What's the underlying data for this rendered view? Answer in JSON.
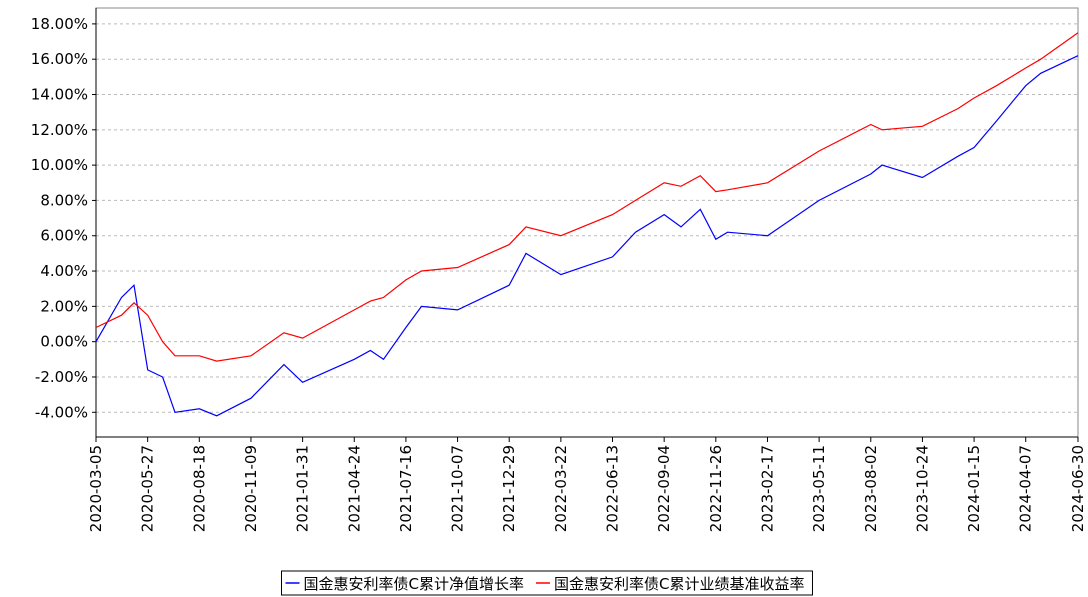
{
  "chart_data": {
    "type": "line",
    "x": [
      "2020-03-05",
      "2020-04-15",
      "2020-05-05",
      "2020-05-27",
      "2020-06-20",
      "2020-07-10",
      "2020-08-18",
      "2020-09-15",
      "2020-11-09",
      "2021-01-01",
      "2021-01-31",
      "2021-04-24",
      "2021-05-20",
      "2021-06-10",
      "2021-07-16",
      "2021-08-10",
      "2021-10-07",
      "2021-12-29",
      "2022-01-25",
      "2022-03-22",
      "2022-06-13",
      "2022-07-20",
      "2022-09-04",
      "2022-10-01",
      "2022-11-01",
      "2022-11-26",
      "2022-12-15",
      "2023-02-17",
      "2023-05-11",
      "2023-08-02",
      "2023-08-20",
      "2023-10-24",
      "2023-12-20",
      "2024-01-15",
      "2024-02-20",
      "2024-04-07",
      "2024-05-01",
      "2024-06-30"
    ],
    "series": [
      {
        "name": "国金惠安利率债C累计净值增长率",
        "color": "#0000ff",
        "values": [
          0.0,
          2.5,
          3.2,
          -1.6,
          -2.0,
          -4.0,
          -3.8,
          -4.2,
          -3.2,
          -1.3,
          -2.3,
          -1.0,
          -0.5,
          -1.0,
          0.8,
          2.0,
          1.8,
          3.2,
          5.0,
          3.8,
          4.8,
          6.2,
          7.2,
          6.5,
          7.5,
          5.8,
          6.2,
          6.0,
          8.0,
          9.5,
          10.0,
          9.3,
          10.5,
          11.0,
          12.5,
          14.5,
          15.2,
          16.2
        ]
      },
      {
        "name": "国金惠安利率债C累计业绩基准收益率",
        "color": "#ff0000",
        "values": [
          0.8,
          1.5,
          2.2,
          1.5,
          0.0,
          -0.8,
          -0.8,
          -1.1,
          -0.8,
          0.5,
          0.2,
          1.8,
          2.3,
          2.5,
          3.5,
          4.0,
          4.2,
          5.5,
          6.5,
          6.0,
          7.2,
          8.0,
          9.0,
          8.8,
          9.4,
          8.5,
          8.6,
          9.0,
          10.8,
          12.3,
          12.0,
          12.2,
          13.2,
          13.8,
          14.5,
          15.5,
          16.0,
          17.5
        ]
      }
    ],
    "xlim": [
      "2020-03-05",
      "2024-06-30"
    ],
    "xticks": [
      "2020-03-05",
      "2020-05-27",
      "2020-08-18",
      "2020-11-09",
      "2021-01-31",
      "2021-04-24",
      "2021-07-16",
      "2021-10-07",
      "2021-12-29",
      "2022-03-22",
      "2022-06-13",
      "2022-09-04",
      "2022-11-26",
      "2023-02-17",
      "2023-05-11",
      "2023-08-02",
      "2023-10-24",
      "2024-01-15",
      "2024-04-07",
      "2024-06-30"
    ],
    "ylim": [
      -5.4,
      18.9
    ],
    "yticks": [
      {
        "value": -4,
        "label": "-4.00%"
      },
      {
        "value": -2,
        "label": "-2.00%"
      },
      {
        "value": 0,
        "label": "0.00%"
      },
      {
        "value": 2,
        "label": "2.00%"
      },
      {
        "value": 4,
        "label": "4.00%"
      },
      {
        "value": 6,
        "label": "6.00%"
      },
      {
        "value": 8,
        "label": "8.00%"
      },
      {
        "value": 10,
        "label": "10.00%"
      },
      {
        "value": 12,
        "label": "12.00%"
      },
      {
        "value": 14,
        "label": "14.00%"
      },
      {
        "value": 16,
        "label": "16.00%"
      },
      {
        "value": 18,
        "label": "18.00%"
      }
    ],
    "grid": true,
    "legend": "bottom"
  }
}
